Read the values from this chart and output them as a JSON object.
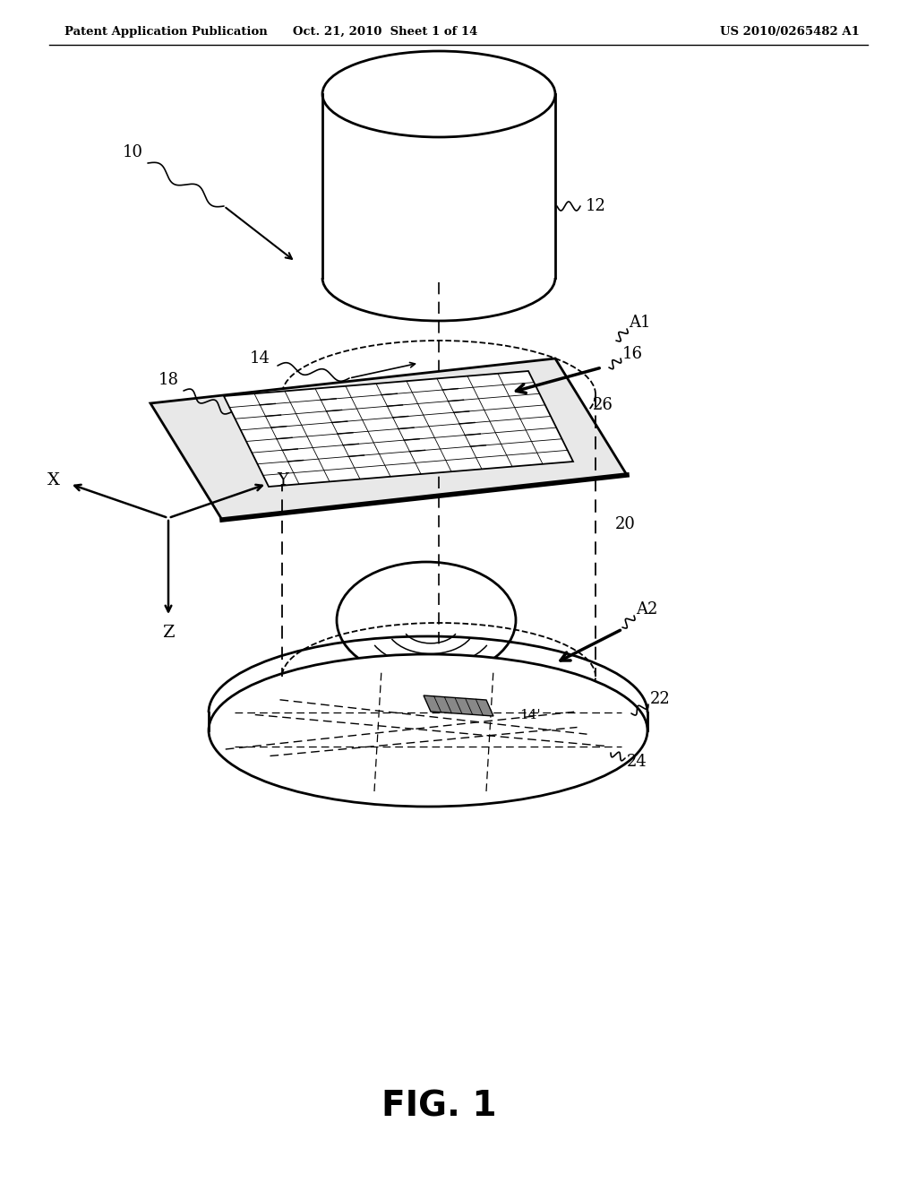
{
  "background_color": "#ffffff",
  "header_left": "Patent Application Publication",
  "header_center": "Oct. 21, 2010  Sheet 1 of 14",
  "header_right": "US 2010/0265482 A1",
  "figure_label": "FIG. 1"
}
